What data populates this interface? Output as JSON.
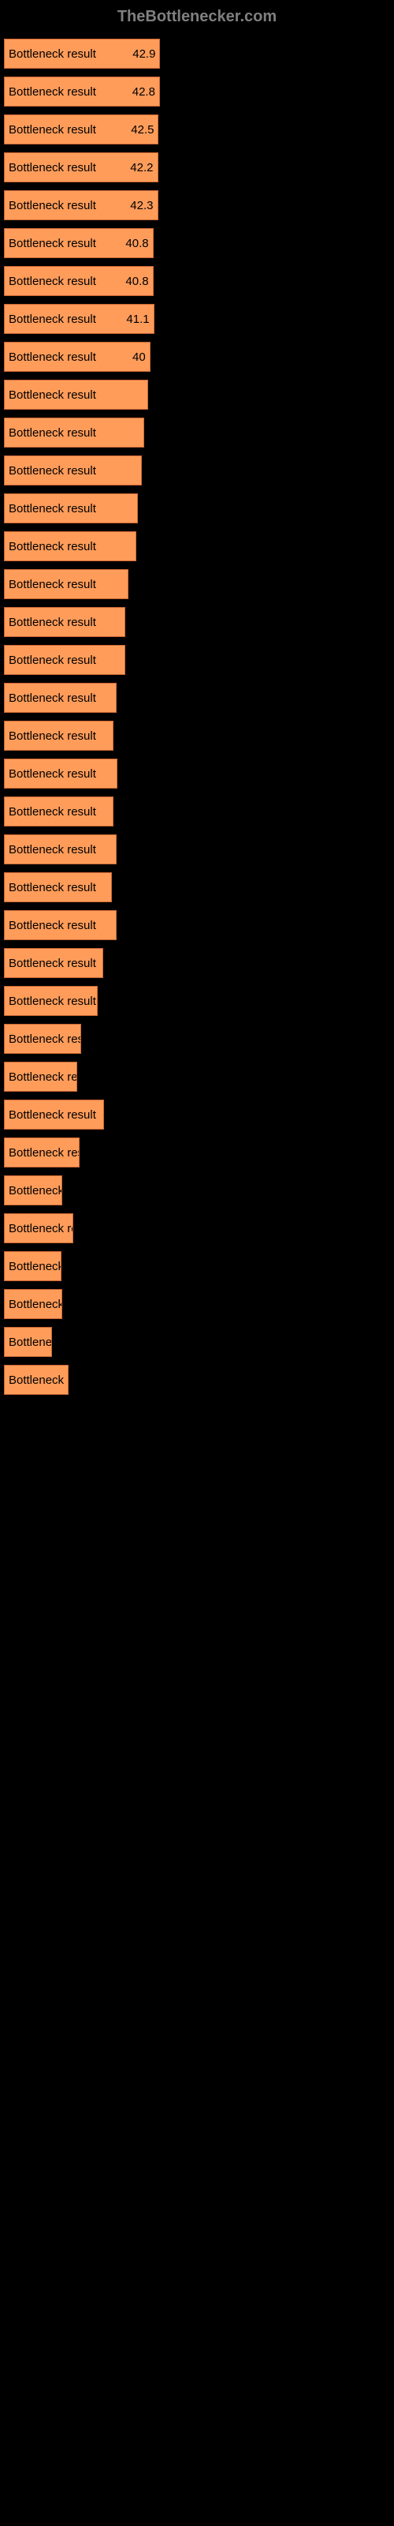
{
  "header": "TheBottlenecker.com",
  "chart": {
    "type": "bar",
    "bar_color": "#ff9c5a",
    "bar_border_color": "#cc6633",
    "background_color": "#000000",
    "label_color": "#c0c0c0",
    "value_color": "#000000",
    "bar_text": "Bottleneck result",
    "max_value": 70,
    "bars": [
      {
        "label": "",
        "value": 42.9,
        "width_pct": 40.5,
        "show_value": true,
        "display": "42.9"
      },
      {
        "label": "",
        "value": 42.8,
        "width_pct": 40.4,
        "show_value": true,
        "display": "42.8"
      },
      {
        "label": "",
        "value": 42.5,
        "width_pct": 40.1,
        "show_value": true,
        "display": "42.5"
      },
      {
        "label": "",
        "value": 42.2,
        "width_pct": 39.9,
        "show_value": true,
        "display": "42.2"
      },
      {
        "label": "",
        "value": 42.3,
        "width_pct": 39.9,
        "show_value": true,
        "display": "42.3"
      },
      {
        "label": "",
        "value": 40.8,
        "width_pct": 38.7,
        "show_value": true,
        "display": "40.8"
      },
      {
        "label": "",
        "value": 40.8,
        "width_pct": 38.7,
        "show_value": true,
        "display": "40.8"
      },
      {
        "label": "",
        "value": 41.1,
        "width_pct": 38.9,
        "show_value": true,
        "display": "41.1"
      },
      {
        "label": "",
        "value": 40.0,
        "width_pct": 37.9,
        "show_value": true,
        "display": "40"
      },
      {
        "label": "",
        "value": 39.3,
        "width_pct": 37.4,
        "show_value": false,
        "display": ""
      },
      {
        "label": "",
        "value": 38.1,
        "width_pct": 36.3,
        "show_value": false,
        "display": ""
      },
      {
        "label": "",
        "value": 37.4,
        "width_pct": 35.7,
        "show_value": false,
        "display": ""
      },
      {
        "label": "",
        "value": 36.1,
        "width_pct": 34.6,
        "show_value": false,
        "display": ""
      },
      {
        "label": "",
        "value": 35.8,
        "width_pct": 34.3,
        "show_value": false,
        "display": ""
      },
      {
        "label": "",
        "value": 33.5,
        "width_pct": 32.2,
        "show_value": false,
        "display": ""
      },
      {
        "label": "",
        "value": 32.0,
        "width_pct": 31.4,
        "show_value": false,
        "display": ""
      },
      {
        "label": "",
        "value": 32.7,
        "width_pct": 31.5,
        "show_value": false,
        "display": ""
      },
      {
        "label": "",
        "value": 30.0,
        "width_pct": 29.2,
        "show_value": false,
        "display": ""
      },
      {
        "label": "",
        "value": 29.0,
        "width_pct": 28.3,
        "show_value": false,
        "display": ""
      },
      {
        "label": "",
        "value": 30.5,
        "width_pct": 29.4,
        "show_value": false,
        "display": ""
      },
      {
        "label": "",
        "value": 29.0,
        "width_pct": 28.3,
        "show_value": false,
        "display": ""
      },
      {
        "label": "",
        "value": 30.0,
        "width_pct": 29.2,
        "show_value": false,
        "display": ""
      },
      {
        "label": "",
        "value": 28.5,
        "width_pct": 28.0,
        "show_value": false,
        "display": ""
      },
      {
        "label": "",
        "value": 30.0,
        "width_pct": 29.2,
        "show_value": false,
        "display": ""
      },
      {
        "label": "",
        "value": 26.1,
        "width_pct": 25.7,
        "show_value": false,
        "display": ""
      },
      {
        "label": "",
        "value": 24.5,
        "width_pct": 24.2,
        "show_value": false,
        "display": ""
      },
      {
        "label": "",
        "value": 20.0,
        "width_pct": 20.0,
        "show_value": false,
        "display": ""
      },
      {
        "label": "",
        "value": 19.0,
        "width_pct": 19.0,
        "show_value": false,
        "display": ""
      },
      {
        "label": "",
        "value": 26.5,
        "width_pct": 25.9,
        "show_value": false,
        "display": ""
      },
      {
        "label": "",
        "value": 19.5,
        "width_pct": 19.5,
        "show_value": false,
        "display": ""
      },
      {
        "label": "",
        "value": 15.0,
        "width_pct": 15.2,
        "show_value": false,
        "display": ""
      },
      {
        "label": "",
        "value": 18.0,
        "width_pct": 18.0,
        "show_value": false,
        "display": ""
      },
      {
        "label": "",
        "value": 14.5,
        "width_pct": 14.8,
        "show_value": false,
        "display": ""
      },
      {
        "label": "",
        "value": 15.0,
        "width_pct": 15.2,
        "show_value": false,
        "display": ""
      },
      {
        "label": "",
        "value": 12.0,
        "width_pct": 12.5,
        "show_value": false,
        "display": ""
      },
      {
        "label": "",
        "value": 16.5,
        "width_pct": 16.8,
        "show_value": false,
        "display": ""
      }
    ],
    "axis_ticks": [
      0,
      10,
      20,
      30,
      40,
      50,
      60,
      70
    ]
  }
}
